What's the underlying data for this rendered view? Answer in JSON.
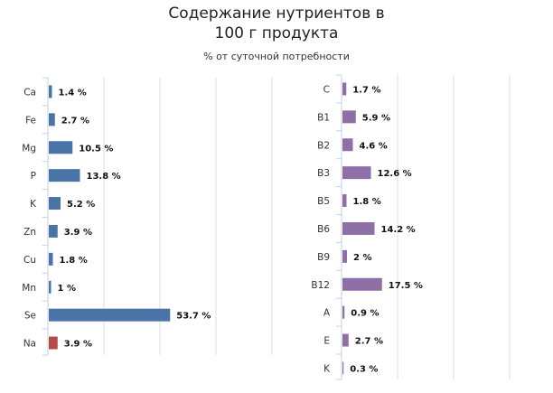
{
  "title": {
    "line1": "Содержание нутриентов в",
    "line2": "100 г продукта"
  },
  "subtitle": "% от суточной потребности",
  "chart_data": [
    {
      "type": "bar",
      "orientation": "horizontal",
      "categories": [
        "Ca",
        "Fe",
        "Mg",
        "P",
        "K",
        "Zn",
        "Cu",
        "Mn",
        "Se",
        "Na"
      ],
      "values": [
        1.4,
        2.7,
        10.5,
        13.8,
        5.2,
        3.9,
        1.8,
        1,
        53.7,
        3.9
      ],
      "data_labels": [
        "1.4 %",
        "2.7 %",
        "10.5 %",
        "13.8 %",
        "5.2 %",
        "3.9 %",
        "1.8 %",
        "1 %",
        "53.7 %",
        "3.9 %"
      ],
      "colors": [
        "#4a74a8",
        "#4a74a8",
        "#4a74a8",
        "#4a74a8",
        "#4a74a8",
        "#4a74a8",
        "#4a74a8",
        "#4a74a8",
        "#4a74a8",
        "#b54a4a"
      ],
      "xlim": [
        0,
        100
      ],
      "grid": true
    },
    {
      "type": "bar",
      "orientation": "horizontal",
      "categories": [
        "C",
        "B1",
        "B2",
        "B3",
        "B5",
        "B6",
        "B9",
        "B12",
        "A",
        "E",
        "K"
      ],
      "values": [
        1.7,
        5.9,
        4.6,
        12.6,
        1.8,
        14.2,
        2,
        17.5,
        0.9,
        2.7,
        0.3
      ],
      "data_labels": [
        "1.7 %",
        "5.9 %",
        "4.6 %",
        "12.6 %",
        "1.8 %",
        "14.2 %",
        "2 %",
        "17.5 %",
        "0.9 %",
        "2.7 %",
        "0.3 %"
      ],
      "colors": [
        "#8e6fa6",
        "#8e6fa6",
        "#8e6fa6",
        "#8e6fa6",
        "#8e6fa6",
        "#8e6fa6",
        "#8e6fa6",
        "#8e6fa6",
        "#8e6fa6",
        "#8e6fa6",
        "#8e6fa6"
      ],
      "xlim": [
        0,
        100
      ],
      "grid": true
    }
  ]
}
